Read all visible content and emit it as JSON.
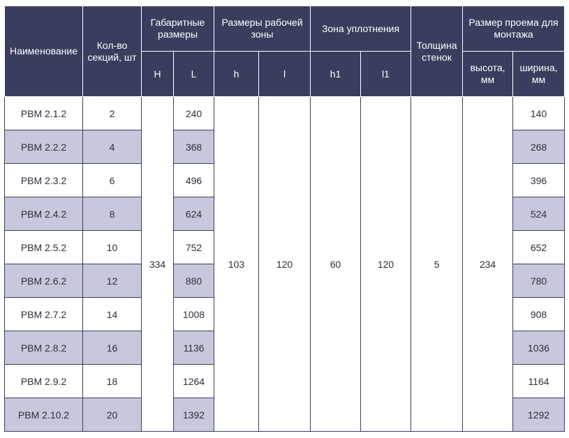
{
  "header": {
    "name": "Наименование",
    "sections": "Кол-во секций, шт",
    "overall": "Габаритные размеры",
    "overall_H": "H",
    "overall_L": "L",
    "work_zone": "Размеры рабочей зоны",
    "work_h": "h",
    "work_l": "l",
    "seal_zone": "Зона уплотнения",
    "seal_h1": "h1",
    "seal_l1": "l1",
    "wall": "Толщина стенок",
    "opening": "Размер проема для монтажа",
    "opening_height": "высота, мм",
    "opening_width": "ширина, мм"
  },
  "merged": {
    "H": "334",
    "h": "103",
    "l": "120",
    "h1": "60",
    "l1": "120",
    "wall": "5",
    "opening_height": "234"
  },
  "rows": [
    {
      "name": "РВМ 2.1.2",
      "sections": "2",
      "L": "240",
      "width": "140"
    },
    {
      "name": "РВМ 2.2.2",
      "sections": "4",
      "L": "368",
      "width": "268"
    },
    {
      "name": "РВМ 2.3.2",
      "sections": "6",
      "L": "496",
      "width": "396"
    },
    {
      "name": "РВМ 2.4.2",
      "sections": "8",
      "L": "624",
      "width": "524"
    },
    {
      "name": "РВМ 2.5.2",
      "sections": "10",
      "L": "752",
      "width": "652"
    },
    {
      "name": "РВМ 2.6.2",
      "sections": "12",
      "L": "880",
      "width": "780"
    },
    {
      "name": "РВМ 2.7.2",
      "sections": "14",
      "L": "1008",
      "width": "908"
    },
    {
      "name": "РВМ 2.8.2",
      "sections": "16",
      "L": "1136",
      "width": "1036"
    },
    {
      "name": "РВМ 2.9.2",
      "sections": "18",
      "L": "1264",
      "width": "1164"
    },
    {
      "name": "РВМ 2.10.2",
      "sections": "20",
      "L": "1392",
      "width": "1292"
    }
  ],
  "colors": {
    "header_bg": "#3a3e5e",
    "row_shade": "#c7c8dc",
    "border": "#3b3f5c"
  }
}
